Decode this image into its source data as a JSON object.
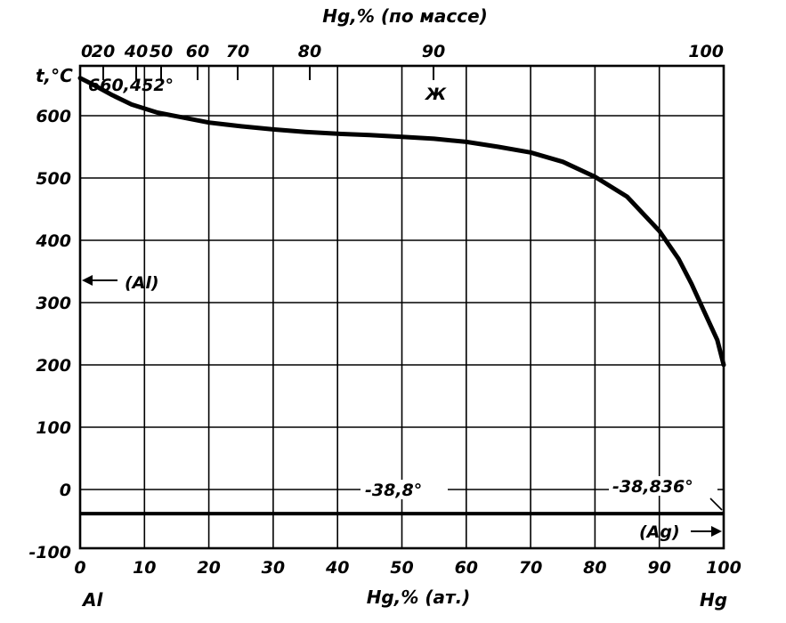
{
  "chart_data": {
    "type": "line",
    "title": "",
    "x_bottom": {
      "label": "Hg,% (ат.)",
      "range": [
        0,
        100
      ],
      "ticks": [
        0,
        10,
        20,
        30,
        40,
        50,
        60,
        70,
        80,
        90,
        100
      ],
      "tick_labels": [
        "0",
        "10",
        "20",
        "30",
        "40",
        "50",
        "60",
        "70",
        "80",
        "90",
        "100"
      ],
      "left_end_label": "Al",
      "right_end_label": "Hg"
    },
    "x_top": {
      "label": "Hg,% (по массе)",
      "tick_labels": [
        "0",
        "20",
        "40",
        "50",
        "60",
        "70",
        "80",
        "90",
        "100"
      ]
    },
    "y": {
      "label": "t,°C",
      "range": [
        -100,
        700
      ],
      "ticks": [
        -100,
        0,
        100,
        200,
        300,
        400,
        500,
        600
      ],
      "tick_labels": [
        "-100",
        "0",
        "100",
        "200",
        "300",
        "400",
        "500",
        "600"
      ]
    },
    "grid": true,
    "series": [
      {
        "x": [
          0,
          2,
          5,
          8,
          12,
          16,
          20,
          25,
          30,
          35,
          40,
          45,
          50,
          55,
          60,
          65,
          70,
          75,
          80,
          85,
          90,
          93,
          95,
          97,
          99,
          100
        ],
        "y": [
          660.452,
          650,
          633,
          618,
          605,
          597,
          589,
          583,
          578,
          574,
          571,
          569,
          566,
          563,
          558,
          550,
          541,
          526,
          502,
          470,
          415,
          370,
          330,
          285,
          240,
          200
        ]
      },
      {
        "x": [
          0,
          100
        ],
        "y": [
          -38.8,
          -38.8
        ]
      }
    ],
    "annotations": {
      "al_melting": "660,452°",
      "liquid": "Ж",
      "al_phase": "(Al)",
      "eutectic": "-38,8°",
      "hg_melting": "-38,836°",
      "ag_phase": "(Ag)"
    }
  }
}
